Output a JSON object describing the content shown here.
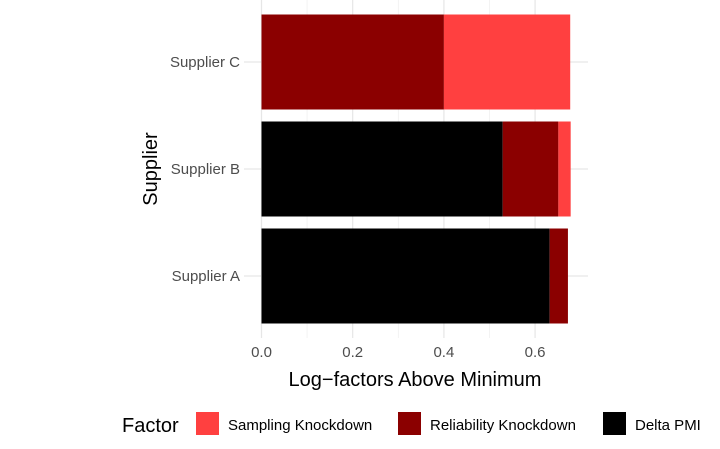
{
  "chart_data": {
    "type": "bar",
    "orientation": "horizontal",
    "stacked": true,
    "title": "",
    "xlabel": "Log−factors Above Minimum",
    "ylabel": "Supplier",
    "xlim": [
      0,
      0.7
    ],
    "x_ticks": [
      "0.0",
      "0.2",
      "0.4",
      "0.6"
    ],
    "x_tick_values": [
      0,
      0.2,
      0.4,
      0.6
    ],
    "grid": true,
    "categories": [
      "Supplier A",
      "Supplier B",
      "Supplier C"
    ],
    "series": [
      {
        "name": "Delta PMI",
        "color": "#000000",
        "values": [
          0.632,
          0.529,
          0.0
        ]
      },
      {
        "name": "Reliability Knockdown",
        "color": "#8b0000",
        "values": [
          0.04,
          0.122,
          0.4
        ]
      },
      {
        "name": "Sampling Knockdown",
        "color": "#ff4040",
        "values": [
          0.0,
          0.027,
          0.277
        ]
      }
    ],
    "legend": {
      "title": "Factor",
      "position": "bottom",
      "entries": [
        {
          "label": "Sampling Knockdown",
          "color": "#ff4040"
        },
        {
          "label": "Reliability Knockdown",
          "color": "#8b0000"
        },
        {
          "label": "Delta PMI",
          "color": "#000000"
        }
      ]
    }
  }
}
